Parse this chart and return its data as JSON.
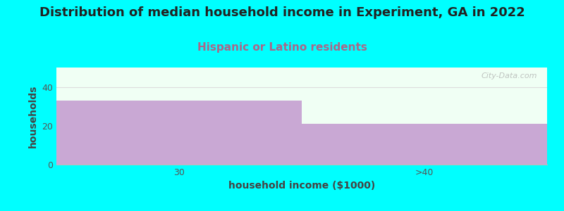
{
  "title": "Distribution of median household income in Experiment, GA in 2022",
  "subtitle": "Hispanic or Latino residents",
  "categories": [
    "30",
    ">40"
  ],
  "values": [
    33,
    21
  ],
  "bar_color": "#c9a8d4",
  "plot_bg_color": "#f0fff4",
  "fig_bg_color": "#00ffff",
  "xlabel": "household income ($1000)",
  "ylabel": "households",
  "ylim": [
    0,
    50
  ],
  "yticks": [
    0,
    20,
    40
  ],
  "title_fontsize": 13,
  "subtitle_fontsize": 11,
  "subtitle_color": "#aa6688",
  "axis_label_fontsize": 10,
  "tick_fontsize": 9,
  "watermark": "City-Data.com"
}
